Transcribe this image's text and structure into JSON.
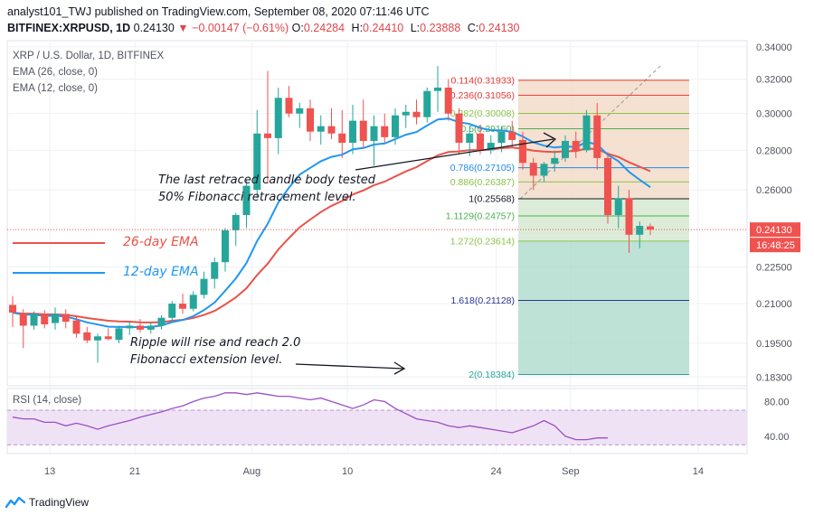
{
  "header": {
    "published_line": "analyst101_TWJ published on TradingView.com, September 08, 2020 07:11:46 UTC",
    "symbol_line": "BITFINEX:XRPUSD, 1D",
    "last_price": "0.24130",
    "change_arrow": "▼",
    "change": "−0.00147 (−0.61%)",
    "ohlc": [
      {
        "label": "O:",
        "value": "0.24284"
      },
      {
        "label": "H:",
        "value": "0.24410"
      },
      {
        "label": "L:",
        "value": "0.23888"
      },
      {
        "label": "C:",
        "value": "0.24130"
      }
    ]
  },
  "indicators": {
    "title": "XRP / U.S. Dollar, 1D, BITFINEX",
    "ema26": "EMA (26, close, 0)",
    "ema12": "EMA (12, close, 0)",
    "rsi": "RSI (14, close)"
  },
  "legend": {
    "ema26_label": "26-day EMA",
    "ema12_label": "12-day EMA"
  },
  "annotations": {
    "retrace_line1": "The last retraced candle body tested",
    "retrace_line2": "50% Fibonacci retracement level.",
    "rise_line1": "Ripple will rise and reach 2.0",
    "rise_line2": "Fibonacci extension level."
  },
  "footer": {
    "brand": "TradingView"
  },
  "colors": {
    "up": "#26a69a",
    "down": "#ef5350",
    "ema26": "#e8534a",
    "ema12": "#2196f3",
    "rsi": "#9c4fc4",
    "rsi_band": "#efe2f5",
    "grid": "#eef0f3",
    "axis_text": "#50535e"
  },
  "chart_data": [
    {
      "type": "candlestick",
      "title": "XRP / U.S. Dollar, 1D, BITFINEX",
      "x_tick_labels": [
        "13",
        "21",
        "Aug",
        "10",
        "24",
        "Sep",
        "14"
      ],
      "y_tick_labels": [
        "0.34000",
        "0.32000",
        "0.30000",
        "0.28000",
        "0.26000",
        "0.24130",
        "0.22500",
        "0.21000",
        "0.19500",
        "0.18300"
      ],
      "y_ticks": [
        0.34,
        0.32,
        0.3,
        0.28,
        0.26,
        0.225,
        0.21,
        0.195,
        0.183
      ],
      "ylim": [
        0.18,
        0.344
      ],
      "scale": "log",
      "last_price_label": "0.24130",
      "countdown_label": "16:48:25",
      "candles": [
        {
          "o": 0.2095,
          "h": 0.213,
          "l": 0.201,
          "c": 0.2065
        },
        {
          "o": 0.2062,
          "h": 0.2078,
          "l": 0.1932,
          "c": 0.2015
        },
        {
          "o": 0.2015,
          "h": 0.207,
          "l": 0.2,
          "c": 0.206
        },
        {
          "o": 0.2058,
          "h": 0.2075,
          "l": 0.2005,
          "c": 0.202
        },
        {
          "o": 0.2025,
          "h": 0.2085,
          "l": 0.2,
          "c": 0.206
        },
        {
          "o": 0.206,
          "h": 0.2078,
          "l": 0.2005,
          "c": 0.203
        },
        {
          "o": 0.2035,
          "h": 0.2055,
          "l": 0.197,
          "c": 0.1985
        },
        {
          "o": 0.199,
          "h": 0.201,
          "l": 0.195,
          "c": 0.196
        },
        {
          "o": 0.196,
          "h": 0.1985,
          "l": 0.188,
          "c": 0.1975
        },
        {
          "o": 0.1975,
          "h": 0.2005,
          "l": 0.196,
          "c": 0.1965
        },
        {
          "o": 0.1962,
          "h": 0.2015,
          "l": 0.195,
          "c": 0.2005
        },
        {
          "o": 0.2005,
          "h": 0.203,
          "l": 0.198,
          "c": 0.2015
        },
        {
          "o": 0.2015,
          "h": 0.204,
          "l": 0.199,
          "c": 0.2
        },
        {
          "o": 0.2,
          "h": 0.203,
          "l": 0.1985,
          "c": 0.2015
        },
        {
          "o": 0.2015,
          "h": 0.2055,
          "l": 0.2,
          "c": 0.2045
        },
        {
          "o": 0.2045,
          "h": 0.211,
          "l": 0.203,
          "c": 0.21
        },
        {
          "o": 0.21,
          "h": 0.214,
          "l": 0.206,
          "c": 0.208
        },
        {
          "o": 0.208,
          "h": 0.215,
          "l": 0.207,
          "c": 0.2135
        },
        {
          "o": 0.2135,
          "h": 0.223,
          "l": 0.212,
          "c": 0.22
        },
        {
          "o": 0.22,
          "h": 0.229,
          "l": 0.216,
          "c": 0.227
        },
        {
          "o": 0.227,
          "h": 0.242,
          "l": 0.223,
          "c": 0.241
        },
        {
          "o": 0.241,
          "h": 0.249,
          "l": 0.234,
          "c": 0.248
        },
        {
          "o": 0.248,
          "h": 0.265,
          "l": 0.242,
          "c": 0.262
        },
        {
          "o": 0.26,
          "h": 0.302,
          "l": 0.256,
          "c": 0.289
        },
        {
          "o": 0.289,
          "h": 0.325,
          "l": 0.263,
          "c": 0.2865
        },
        {
          "o": 0.2865,
          "h": 0.315,
          "l": 0.278,
          "c": 0.309
        },
        {
          "o": 0.309,
          "h": 0.316,
          "l": 0.298,
          "c": 0.3
        },
        {
          "o": 0.3,
          "h": 0.306,
          "l": 0.292,
          "c": 0.303
        },
        {
          "o": 0.303,
          "h": 0.308,
          "l": 0.285,
          "c": 0.29
        },
        {
          "o": 0.29,
          "h": 0.299,
          "l": 0.283,
          "c": 0.293
        },
        {
          "o": 0.293,
          "h": 0.303,
          "l": 0.286,
          "c": 0.289
        },
        {
          "o": 0.289,
          "h": 0.302,
          "l": 0.276,
          "c": 0.284
        },
        {
          "o": 0.284,
          "h": 0.305,
          "l": 0.278,
          "c": 0.296
        },
        {
          "o": 0.296,
          "h": 0.308,
          "l": 0.281,
          "c": 0.285
        },
        {
          "o": 0.285,
          "h": 0.299,
          "l": 0.272,
          "c": 0.293
        },
        {
          "o": 0.293,
          "h": 0.3,
          "l": 0.284,
          "c": 0.287
        },
        {
          "o": 0.287,
          "h": 0.303,
          "l": 0.283,
          "c": 0.299
        },
        {
          "o": 0.299,
          "h": 0.305,
          "l": 0.292,
          "c": 0.301
        },
        {
          "o": 0.301,
          "h": 0.308,
          "l": 0.294,
          "c": 0.298
        },
        {
          "o": 0.298,
          "h": 0.315,
          "l": 0.295,
          "c": 0.313
        },
        {
          "o": 0.313,
          "h": 0.328,
          "l": 0.301,
          "c": 0.315
        },
        {
          "o": 0.315,
          "h": 0.32,
          "l": 0.296,
          "c": 0.3
        },
        {
          "o": 0.3,
          "h": 0.303,
          "l": 0.278,
          "c": 0.284
        },
        {
          "o": 0.284,
          "h": 0.293,
          "l": 0.277,
          "c": 0.289
        },
        {
          "o": 0.289,
          "h": 0.294,
          "l": 0.278,
          "c": 0.28
        },
        {
          "o": 0.28,
          "h": 0.288,
          "l": 0.278,
          "c": 0.284
        },
        {
          "o": 0.284,
          "h": 0.293,
          "l": 0.279,
          "c": 0.29
        },
        {
          "o": 0.29,
          "h": 0.296,
          "l": 0.282,
          "c": 0.2855
        },
        {
          "o": 0.2855,
          "h": 0.29,
          "l": 0.27,
          "c": 0.2735
        },
        {
          "o": 0.2735,
          "h": 0.276,
          "l": 0.26,
          "c": 0.267
        },
        {
          "o": 0.267,
          "h": 0.274,
          "l": 0.264,
          "c": 0.273
        },
        {
          "o": 0.273,
          "h": 0.28,
          "l": 0.269,
          "c": 0.276
        },
        {
          "o": 0.276,
          "h": 0.288,
          "l": 0.274,
          "c": 0.285
        },
        {
          "o": 0.285,
          "h": 0.29,
          "l": 0.276,
          "c": 0.28
        },
        {
          "o": 0.28,
          "h": 0.302,
          "l": 0.279,
          "c": 0.299
        },
        {
          "o": 0.299,
          "h": 0.306,
          "l": 0.27,
          "c": 0.276
        },
        {
          "o": 0.276,
          "h": 0.279,
          "l": 0.244,
          "c": 0.248
        },
        {
          "o": 0.248,
          "h": 0.262,
          "l": 0.242,
          "c": 0.256
        },
        {
          "o": 0.256,
          "h": 0.26,
          "l": 0.231,
          "c": 0.239
        },
        {
          "o": 0.239,
          "h": 0.245,
          "l": 0.233,
          "c": 0.243
        },
        {
          "o": 0.2428,
          "h": 0.2441,
          "l": 0.2389,
          "c": 0.2413
        }
      ],
      "fibonacci": [
        {
          "ratio": "0.114",
          "price": "0.31933",
          "value": 0.31933,
          "color": "#e53935"
        },
        {
          "ratio": "0.236",
          "price": "0.31056",
          "value": 0.31056,
          "color": "#e53935"
        },
        {
          "ratio": "0.382",
          "price": "0.30008",
          "value": 0.30008,
          "color": "#8bc34a"
        },
        {
          "ratio": "0.5",
          "price": "0.29160",
          "value": 0.2916,
          "color": "#4caf50"
        },
        {
          "ratio": "0.786",
          "price": "0.27105",
          "value": 0.27105,
          "color": "#1e88e5"
        },
        {
          "ratio": "0.886",
          "price": "0.26387",
          "value": 0.26387,
          "color": "#8bc34a"
        },
        {
          "ratio": "1",
          "price": "0.25568",
          "value": 0.25568,
          "color": "#131722"
        },
        {
          "ratio": "1.1129",
          "price": "0.24757",
          "value": 0.24757,
          "color": "#4caf50"
        },
        {
          "ratio": "1.272",
          "price": "0.23614",
          "value": 0.23614,
          "color": "#8bc34a"
        },
        {
          "ratio": "1.618",
          "price": "0.21128",
          "value": 0.21128,
          "color": "#283593"
        },
        {
          "ratio": "2",
          "price": "0.18384",
          "value": 0.18384,
          "color": "#26a69a"
        }
      ]
    },
    {
      "type": "line",
      "title": "RSI (14, close)",
      "y_tick_labels": [
        "80.00",
        "40.00"
      ],
      "y_ticks": [
        80,
        40
      ],
      "ylim": [
        20,
        95
      ],
      "band": [
        30,
        70
      ],
      "values": [
        62,
        60,
        60,
        56,
        56,
        52,
        55,
        52,
        48,
        52,
        55,
        58,
        62,
        65,
        68,
        72,
        75,
        80,
        84,
        86,
        90,
        90,
        88,
        90,
        88,
        86,
        86,
        84,
        82,
        84,
        80,
        76,
        72,
        76,
        82,
        80,
        72,
        66,
        60,
        58,
        56,
        52,
        50,
        52,
        50,
        48,
        46,
        44,
        48,
        52,
        58,
        52,
        40,
        36,
        36,
        38,
        38
      ]
    }
  ]
}
